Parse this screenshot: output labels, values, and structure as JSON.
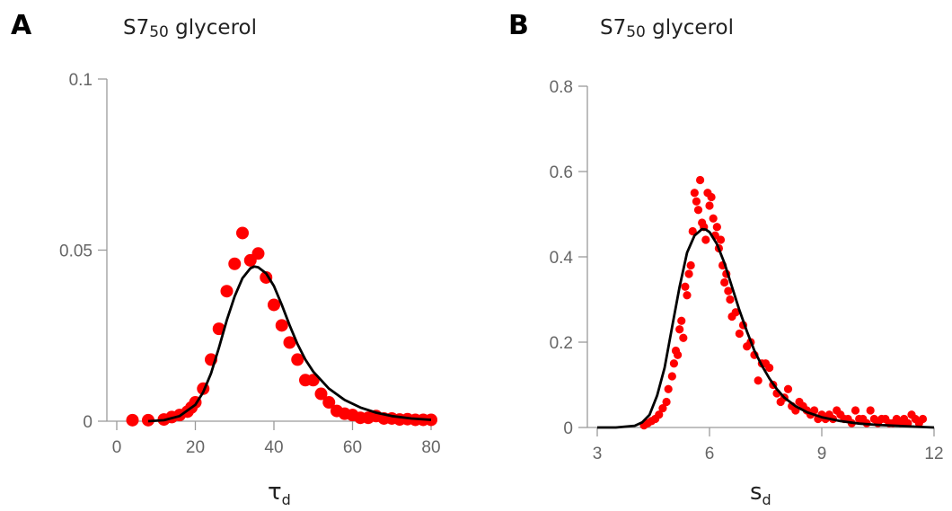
{
  "chart_data": [
    {
      "panel_letter": "A",
      "type": "scatter",
      "title_prefix": "S7",
      "title_subscript": "50",
      "title_suffix": " glycerol",
      "xlabel_main": "τ",
      "xlabel_sub": "d",
      "ylabel": "",
      "xlim": [
        0,
        80
      ],
      "ylim": [
        0,
        0.1
      ],
      "xticks": [
        0,
        20,
        40,
        60,
        80
      ],
      "xtick_labels": [
        "0",
        "20",
        "40",
        "60",
        "80"
      ],
      "yticks": [
        0,
        0.05,
        0.1
      ],
      "ytick_labels": [
        "0",
        "0.05",
        "0.1"
      ],
      "series": [
        {
          "kind": "points",
          "color": "#ff0000",
          "x": [
            4,
            8,
            12,
            14,
            16,
            18,
            19,
            20,
            22,
            24,
            26,
            28,
            30,
            32,
            34,
            36,
            38,
            40,
            42,
            44,
            46,
            48,
            50,
            52,
            54,
            56,
            58,
            60,
            62,
            64,
            66,
            68,
            70,
            72,
            74,
            76,
            78,
            80
          ],
          "y": [
            0.0003,
            0.0003,
            0.0005,
            0.0012,
            0.0018,
            0.0028,
            0.004,
            0.0055,
            0.0095,
            0.018,
            0.027,
            0.038,
            0.046,
            0.055,
            0.047,
            0.049,
            0.042,
            0.034,
            0.028,
            0.023,
            0.018,
            0.012,
            0.012,
            0.008,
            0.0055,
            0.003,
            0.0022,
            0.0018,
            0.001,
            0.001,
            0.0015,
            0.0008,
            0.0008,
            0.0005,
            0.0006,
            0.0004,
            0.0004,
            0.0004
          ]
        },
        {
          "kind": "line",
          "color": "#000000",
          "x": [
            8,
            12,
            16,
            20,
            22,
            24,
            26,
            28,
            30,
            32,
            34,
            35,
            36,
            38,
            40,
            42,
            44,
            46,
            48,
            50,
            54,
            58,
            62,
            66,
            70,
            75,
            80
          ],
          "y": [
            0,
            0.0003,
            0.0015,
            0.0048,
            0.0085,
            0.014,
            0.0215,
            0.0295,
            0.0365,
            0.0418,
            0.0447,
            0.0452,
            0.045,
            0.0432,
            0.0395,
            0.034,
            0.028,
            0.0225,
            0.018,
            0.0145,
            0.0095,
            0.0062,
            0.004,
            0.0025,
            0.0015,
            0.0008,
            0.0004
          ]
        }
      ]
    },
    {
      "panel_letter": "B",
      "type": "scatter",
      "title_prefix": "S7",
      "title_subscript": "50",
      "title_suffix": " glycerol",
      "xlabel_main": "s",
      "xlabel_sub": "d",
      "ylabel": "",
      "xlim": [
        3,
        12
      ],
      "ylim": [
        0,
        0.8
      ],
      "xticks": [
        3,
        6,
        9,
        12
      ],
      "xtick_labels": [
        "3",
        "6",
        "9",
        "12"
      ],
      "yticks": [
        0,
        0.2,
        0.4,
        0.6,
        0.8
      ],
      "ytick_labels": [
        "0",
        "0.2",
        "0.4",
        "0.6",
        "0.8"
      ],
      "series": [
        {
          "kind": "points",
          "color": "#ff0000",
          "x": [
            4.25,
            4.35,
            4.45,
            4.55,
            4.65,
            4.75,
            4.85,
            4.9,
            5.0,
            5.05,
            5.1,
            5.15,
            5.2,
            5.25,
            5.3,
            5.35,
            5.4,
            5.45,
            5.5,
            5.55,
            5.6,
            5.65,
            5.7,
            5.75,
            5.8,
            5.85,
            5.9,
            5.95,
            6.0,
            6.05,
            6.1,
            6.15,
            6.2,
            6.25,
            6.3,
            6.35,
            6.4,
            6.45,
            6.5,
            6.55,
            6.6,
            6.7,
            6.8,
            6.9,
            7.0,
            7.1,
            7.2,
            7.3,
            7.4,
            7.5,
            7.6,
            7.7,
            7.8,
            7.9,
            8.0,
            8.1,
            8.2,
            8.3,
            8.4,
            8.5,
            8.6,
            8.7,
            8.8,
            8.9,
            9.0,
            9.1,
            9.2,
            9.3,
            9.4,
            9.5,
            9.6,
            9.7,
            9.8,
            9.9,
            10.0,
            10.1,
            10.2,
            10.3,
            10.4,
            10.5,
            10.6,
            10.7,
            10.8,
            10.9,
            11.0,
            11.1,
            11.2,
            11.3,
            11.4,
            11.5,
            11.6,
            11.7
          ],
          "y": [
            0.005,
            0.01,
            0.015,
            0.02,
            0.03,
            0.045,
            0.06,
            0.09,
            0.12,
            0.15,
            0.18,
            0.17,
            0.23,
            0.25,
            0.21,
            0.33,
            0.31,
            0.36,
            0.38,
            0.46,
            0.55,
            0.53,
            0.51,
            0.58,
            0.48,
            0.47,
            0.44,
            0.55,
            0.52,
            0.54,
            0.49,
            0.45,
            0.47,
            0.42,
            0.44,
            0.38,
            0.34,
            0.36,
            0.32,
            0.3,
            0.26,
            0.27,
            0.22,
            0.24,
            0.19,
            0.2,
            0.17,
            0.11,
            0.15,
            0.15,
            0.14,
            0.1,
            0.08,
            0.06,
            0.07,
            0.09,
            0.05,
            0.04,
            0.06,
            0.05,
            0.04,
            0.03,
            0.04,
            0.02,
            0.03,
            0.02,
            0.03,
            0.02,
            0.04,
            0.03,
            0.02,
            0.02,
            0.01,
            0.04,
            0.02,
            0.02,
            0.01,
            0.04,
            0.02,
            0.01,
            0.02,
            0.02,
            0.01,
            0.01,
            0.02,
            0.01,
            0.02,
            0.01,
            0.03,
            0.02,
            0.01,
            0.02
          ]
        },
        {
          "kind": "line",
          "color": "#000000",
          "x": [
            3.0,
            3.5,
            4.0,
            4.2,
            4.4,
            4.6,
            4.8,
            5.0,
            5.2,
            5.4,
            5.6,
            5.8,
            5.9,
            6.0,
            6.2,
            6.4,
            6.6,
            6.8,
            7.0,
            7.2,
            7.4,
            7.6,
            7.8,
            8.0,
            8.3,
            8.6,
            9.0,
            9.5,
            10.0,
            10.5,
            11.0,
            11.5,
            12.0
          ],
          "y": [
            0.0,
            0.0,
            0.004,
            0.012,
            0.03,
            0.075,
            0.14,
            0.235,
            0.33,
            0.41,
            0.45,
            0.465,
            0.464,
            0.458,
            0.43,
            0.385,
            0.33,
            0.275,
            0.225,
            0.18,
            0.145,
            0.115,
            0.09,
            0.07,
            0.05,
            0.036,
            0.024,
            0.015,
            0.009,
            0.006,
            0.004,
            0.002,
            0.0
          ]
        }
      ]
    }
  ]
}
